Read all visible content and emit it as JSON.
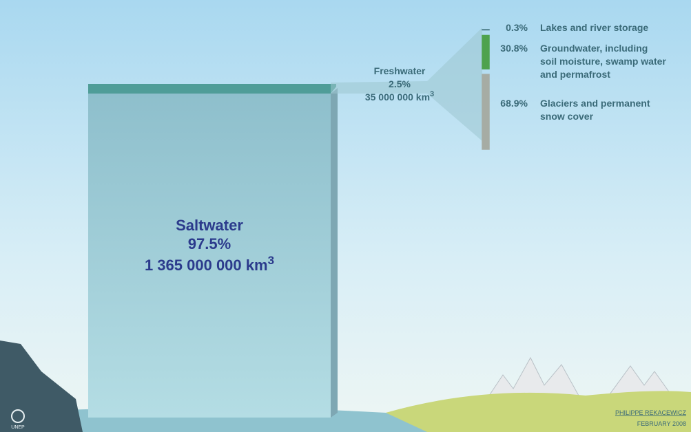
{
  "saltwater": {
    "name": "Saltwater",
    "percent": "97.5%",
    "volume": "1 365 000 000 km",
    "volume_power": "3"
  },
  "freshwater": {
    "name": "Freshwater",
    "percent": "2.5%",
    "volume": "35 000 000 km",
    "volume_power": "3",
    "breakdown": [
      {
        "value": 0.3,
        "label": "0.3%",
        "lines": [
          "Lakes and river storage"
        ],
        "color": "#4a7a86"
      },
      {
        "value": 30.8,
        "label": "30.8%",
        "lines": [
          "Groundwater, including",
          "soil moisture, swamp water",
          "and permafrost"
        ],
        "color": "#4ea24e"
      },
      {
        "value": 68.9,
        "label": "68.9%",
        "lines": [
          "Glaciers and permanent",
          "snow cover"
        ],
        "color": "#a6aca4"
      }
    ]
  },
  "credit": {
    "author": "PHILIPPE REKACEWICZ",
    "date": "FEBRUARY 2008",
    "logo": "UNEP"
  }
}
